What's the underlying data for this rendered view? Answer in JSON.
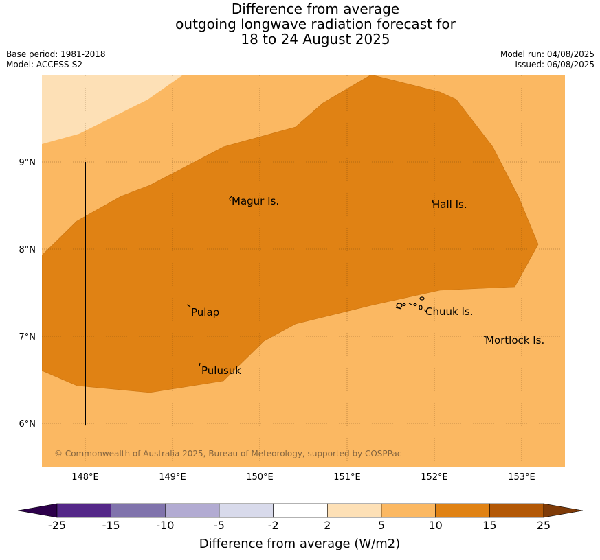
{
  "title": {
    "line1": "Difference from average",
    "line2": "outgoing longwave radiation forecast for",
    "line3": "18 to 24 August 2025"
  },
  "meta": {
    "base_period": "Base period: 1981-2018",
    "model": "Model: ACCESS-S2",
    "model_run": "Model run: 04/08/2025",
    "issued": "Issued: 06/08/2025"
  },
  "map": {
    "lon_labels": [
      "148°E",
      "149°E",
      "150°E",
      "151°E",
      "152°E",
      "153°E"
    ],
    "lat_labels": [
      "9°N",
      "8°N",
      "7°N",
      "6°N"
    ],
    "places": [
      {
        "name": "Magur Is."
      },
      {
        "name": "Hall Is."
      },
      {
        "name": "Pulap"
      },
      {
        "name": "Chuuk Is."
      },
      {
        "name": "Mortlock Is."
      },
      {
        "name": "Pulusuk"
      }
    ],
    "copyright": "© Commonwealth of Australia 2025, Bureau of Meteorology, supported by COSPPac",
    "fill_colors": {
      "2_to_5": "#fde0b6",
      "5_to_10": "#fbb862",
      "10_to_15": "#e08214"
    }
  },
  "colorbar": {
    "label": "Difference from average (W/m2)",
    "ticks": [
      "-25",
      "-15",
      "-10",
      "-5",
      "-2",
      "2",
      "5",
      "10",
      "15",
      "25"
    ],
    "colors": [
      "#2d004b",
      "#542788",
      "#8073ac",
      "#b2abd2",
      "#d8daeb",
      "#ffffff",
      "#fde0b6",
      "#fbb862",
      "#e08214",
      "#b35806",
      "#7f3b08"
    ]
  }
}
